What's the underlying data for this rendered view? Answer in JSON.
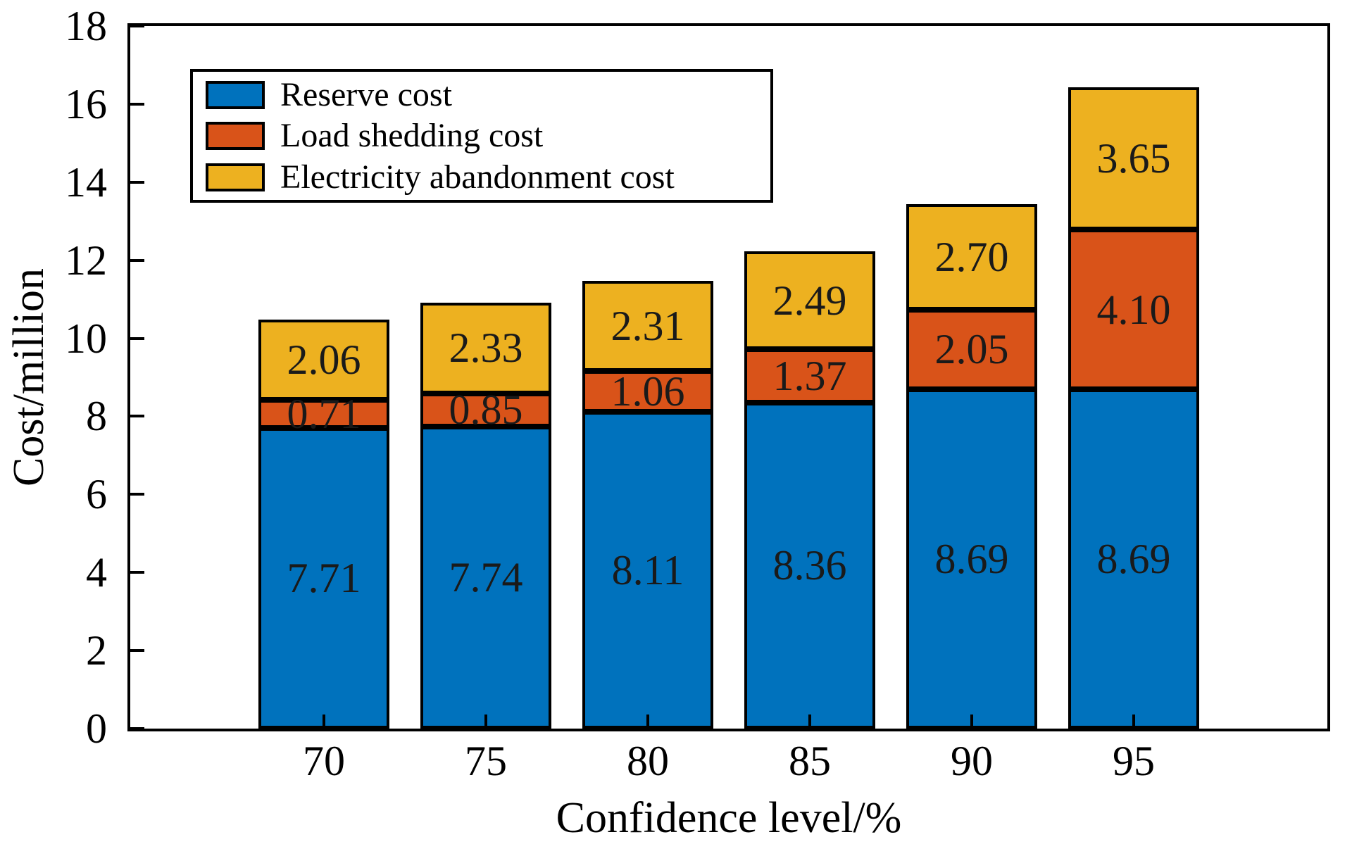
{
  "figure": {
    "background": "#ffffff",
    "frame_color": "#000000"
  },
  "chart_data": {
    "type": "bar",
    "stacked": true,
    "title": "",
    "xlabel": "Confidence level/%",
    "ylabel": "Cost/million",
    "categories": [
      "70",
      "75",
      "80",
      "85",
      "90",
      "95"
    ],
    "series": [
      {
        "name": "Reserve cost",
        "color": "#0072BD",
        "values": [
          7.71,
          7.74,
          8.11,
          8.36,
          8.69,
          8.69
        ]
      },
      {
        "name": "Load shedding cost",
        "color": "#D95319",
        "values": [
          0.71,
          0.85,
          1.06,
          1.37,
          2.05,
          4.1
        ]
      },
      {
        "name": "Electricity abandonment cost",
        "color": "#EDB120",
        "values": [
          2.06,
          2.33,
          2.31,
          2.49,
          2.7,
          3.65
        ]
      }
    ],
    "bar_value_labels": [
      [
        "7.71",
        "0.71",
        "2.06"
      ],
      [
        "7.74",
        "0.85",
        "2.33"
      ],
      [
        "8.11",
        "1.06",
        "2.31"
      ],
      [
        "8.36",
        "1.37",
        "2.49"
      ],
      [
        "8.69",
        "2.05",
        "2.70"
      ],
      [
        "8.69",
        "4.10",
        "3.65"
      ]
    ],
    "ylim": [
      0,
      18
    ],
    "yticks": [
      0,
      2,
      4,
      6,
      8,
      10,
      12,
      14,
      16,
      18
    ],
    "grid": false,
    "legend_position": "upper-left",
    "bar_edge_color": "#000000",
    "value_label_color": "#1a1a1a"
  }
}
